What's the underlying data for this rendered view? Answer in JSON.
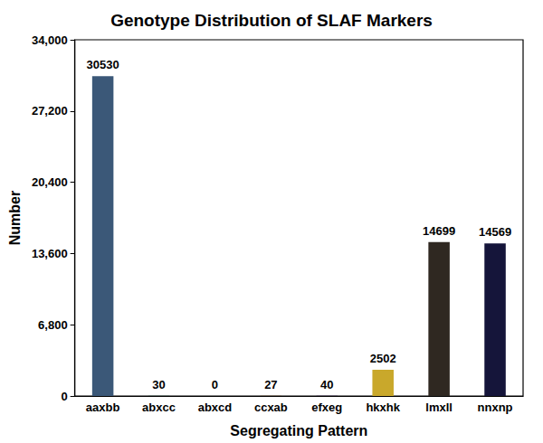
{
  "chart_data": {
    "type": "bar",
    "title": "Genotype Distribution of SLAF Markers",
    "x_label": "Segregating Pattern",
    "y_label": "Number",
    "categories": [
      "aaxbb",
      "abxcc",
      "abxcd",
      "ccxab",
      "efxeg",
      "hkxhk",
      "lmxll",
      "nnxnp"
    ],
    "values": [
      30530,
      30,
      0,
      27,
      40,
      2502,
      14699,
      14569
    ],
    "colors": [
      "#3b5878",
      "#4a6a5a",
      "#6a6a6a",
      "#7a5a3a",
      "#5a4a6a",
      "#c9a82b",
      "#2f2821",
      "#15153a"
    ],
    "ylim": [
      0,
      34000
    ],
    "yticks": [
      0,
      6800,
      13600,
      20400,
      27200,
      34000
    ],
    "grid": false,
    "data_labels": true
  }
}
